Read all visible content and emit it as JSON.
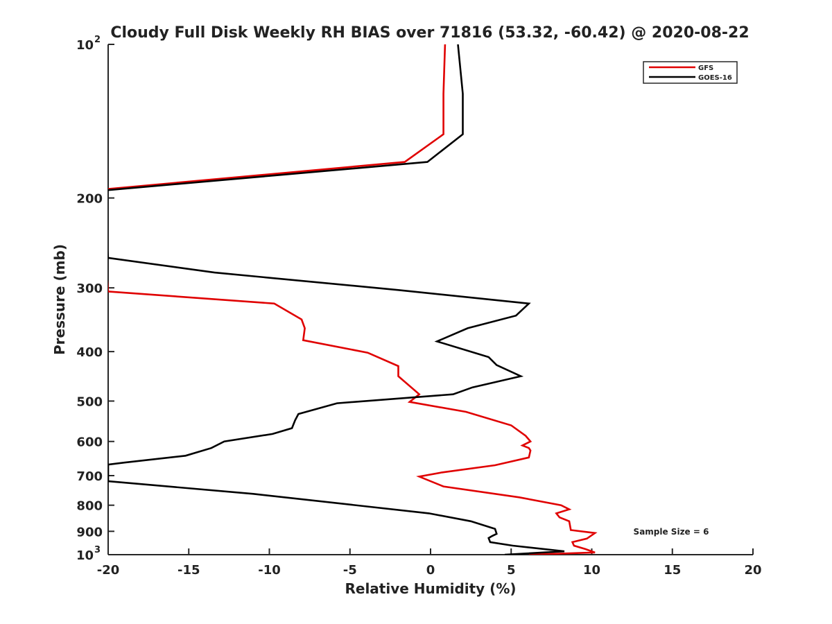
{
  "chart_data": {
    "type": "line",
    "title": "Cloudy Full Disk Weekly RH BIAS over 71816 (53.32, -60.42) @ 2020-08-22",
    "xlabel": "Relative Humidity (%)",
    "ylabel": "Pressure (mb)",
    "xlim": [
      -20,
      20
    ],
    "ylim": [
      100,
      1000
    ],
    "yscale": "log",
    "y_reversed": true,
    "grid": false,
    "legend_position": "top-right",
    "xticks": [
      {
        "value": -20,
        "label": "-20"
      },
      {
        "value": -15,
        "label": "-15"
      },
      {
        "value": -10,
        "label": "-10"
      },
      {
        "value": -5,
        "label": "-5"
      },
      {
        "value": 0,
        "label": "0"
      },
      {
        "value": 5,
        "label": "5"
      },
      {
        "value": 10,
        "label": "10"
      },
      {
        "value": 15,
        "label": "15"
      },
      {
        "value": 20,
        "label": "20"
      }
    ],
    "yticks": [
      {
        "value": 100,
        "label": "10",
        "sup": "2"
      },
      {
        "value": 200,
        "label": "200"
      },
      {
        "value": 300,
        "label": "300"
      },
      {
        "value": 400,
        "label": "400"
      },
      {
        "value": 500,
        "label": "500"
      },
      {
        "value": 600,
        "label": "600"
      },
      {
        "value": 700,
        "label": "700"
      },
      {
        "value": 800,
        "label": "800"
      },
      {
        "value": 900,
        "label": "900"
      },
      {
        "value": 1000,
        "label": "10",
        "sup": "3"
      }
    ],
    "annotation": "Sample Size = 6",
    "series": [
      {
        "name": "GFS",
        "color": "#e00000",
        "points": [
          [
            0.9,
            100
          ],
          [
            0.8,
            125
          ],
          [
            0.8,
            150
          ],
          [
            -1.6,
            170
          ],
          [
            -20.0,
            192
          ],
          [
            -20.5,
            192
          ],
          [
            -20.0,
            305
          ],
          [
            -9.7,
            322
          ],
          [
            -8.0,
            346
          ],
          [
            -7.8,
            360
          ],
          [
            -7.9,
            380
          ],
          [
            -3.9,
            402
          ],
          [
            -2.0,
            427
          ],
          [
            -2.0,
            447
          ],
          [
            -0.7,
            485
          ],
          [
            -1.3,
            502
          ],
          [
            2.2,
            525
          ],
          [
            5.0,
            558
          ],
          [
            5.9,
            585
          ],
          [
            6.2,
            600
          ],
          [
            5.7,
            611
          ],
          [
            6.1,
            618
          ],
          [
            6.2,
            625
          ],
          [
            6.1,
            645
          ],
          [
            4.0,
            668
          ],
          [
            0.7,
            690
          ],
          [
            -0.7,
            703
          ],
          [
            0.8,
            735
          ],
          [
            5.5,
            772
          ],
          [
            8.1,
            800
          ],
          [
            8.6,
            815
          ],
          [
            7.8,
            830
          ],
          [
            8.0,
            845
          ],
          [
            8.6,
            860
          ],
          [
            8.7,
            895
          ],
          [
            10.2,
            907
          ],
          [
            9.7,
            930
          ],
          [
            8.8,
            945
          ],
          [
            8.9,
            960
          ],
          [
            9.6,
            975
          ],
          [
            10.2,
            990
          ],
          [
            6.1,
            1000
          ]
        ]
      },
      {
        "name": "GOES-16",
        "color": "#000000",
        "points": [
          [
            1.7,
            100
          ],
          [
            2.0,
            125
          ],
          [
            2.0,
            150
          ],
          [
            -0.2,
            170
          ],
          [
            -20.0,
            193
          ],
          [
            -20.5,
            193
          ],
          [
            -20.0,
            262
          ],
          [
            -13.4,
            280
          ],
          [
            -2.0,
            303
          ],
          [
            6.1,
            322
          ],
          [
            5.3,
            340
          ],
          [
            2.3,
            360
          ],
          [
            0.4,
            382
          ],
          [
            3.6,
            410
          ],
          [
            4.1,
            425
          ],
          [
            5.6,
            447
          ],
          [
            2.6,
            470
          ],
          [
            1.4,
            485
          ],
          [
            -5.8,
            505
          ],
          [
            -8.2,
            530
          ],
          [
            -8.4,
            545
          ],
          [
            -8.6,
            565
          ],
          [
            -9.8,
            580
          ],
          [
            -12.8,
            600
          ],
          [
            -13.6,
            618
          ],
          [
            -15.2,
            640
          ],
          [
            -19.0,
            660
          ],
          [
            -20.0,
            666
          ],
          [
            -20.0,
            718
          ],
          [
            -11.0,
            760
          ],
          [
            -0.1,
            830
          ],
          [
            2.5,
            860
          ],
          [
            4.0,
            890
          ],
          [
            4.1,
            910
          ],
          [
            3.8,
            920
          ],
          [
            3.6,
            928
          ],
          [
            3.7,
            945
          ],
          [
            5.1,
            960
          ],
          [
            8.3,
            985
          ],
          [
            4.6,
            1000
          ]
        ]
      }
    ]
  }
}
